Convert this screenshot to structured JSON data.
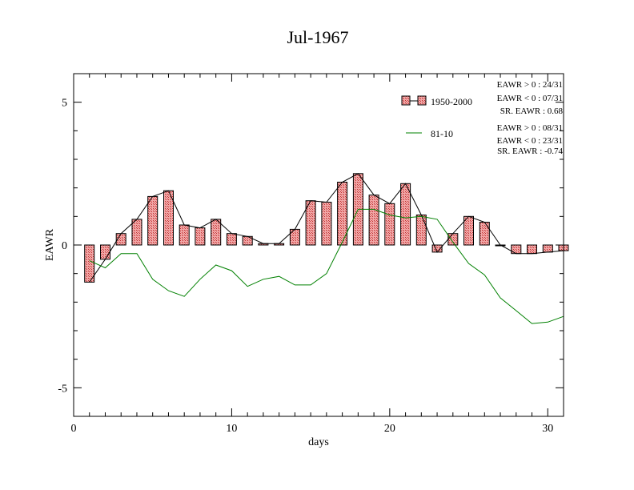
{
  "chart_data": {
    "type": "bar",
    "title": "Jul-1967",
    "xlabel": "days",
    "ylabel": "EAWR",
    "xlim": [
      0,
      31
    ],
    "ylim": [
      -6,
      6
    ],
    "x_ticks": [
      0,
      10,
      20,
      30
    ],
    "y_ticks": [
      -5,
      0,
      5
    ],
    "x_tick_labels": [
      "0",
      "10",
      "20",
      "30"
    ],
    "y_tick_labels": [
      "-5",
      "0",
      "5"
    ],
    "grid": false,
    "legend_position": "top-right",
    "days": [
      1,
      2,
      3,
      4,
      5,
      6,
      7,
      8,
      9,
      10,
      11,
      12,
      13,
      14,
      15,
      16,
      17,
      18,
      19,
      20,
      21,
      22,
      23,
      24,
      25,
      26,
      27,
      28,
      29,
      30,
      31
    ],
    "series": [
      {
        "name": "1950-2000",
        "kind": "bar-with-line",
        "color": "#e87070",
        "line_color": "#000000",
        "values": [
          -1.3,
          -0.5,
          0.4,
          0.9,
          1.7,
          1.9,
          0.7,
          0.6,
          0.9,
          0.4,
          0.3,
          0.05,
          0.05,
          0.55,
          1.55,
          1.5,
          2.2,
          2.5,
          1.75,
          1.45,
          2.15,
          1.05,
          -0.25,
          0.4,
          1.0,
          0.8,
          0.0,
          -0.3,
          -0.3,
          -0.25,
          -0.2
        ]
      },
      {
        "name": "81-10",
        "kind": "line",
        "color": "#008000",
        "values": [
          -0.55,
          -0.8,
          -0.3,
          -0.3,
          -1.2,
          -1.6,
          -1.8,
          -1.2,
          -0.7,
          -0.9,
          -1.45,
          -1.2,
          -1.1,
          -1.4,
          -1.4,
          -1.0,
          0.1,
          1.25,
          1.25,
          1.05,
          0.95,
          1.0,
          0.9,
          0.1,
          -0.65,
          -1.05,
          -1.85,
          -2.3,
          -2.75,
          -2.7,
          -2.5
        ]
      }
    ],
    "stats": [
      {
        "lines": [
          "EAWR > 0 : 24/31",
          "EAWR < 0 : 07/31",
          "SR. EAWR :  0.68"
        ]
      },
      {
        "lines": [
          "EAWR > 0 : 08/31",
          "EAWR < 0 : 23/31",
          "SR. EAWR : -0.74"
        ]
      }
    ]
  }
}
